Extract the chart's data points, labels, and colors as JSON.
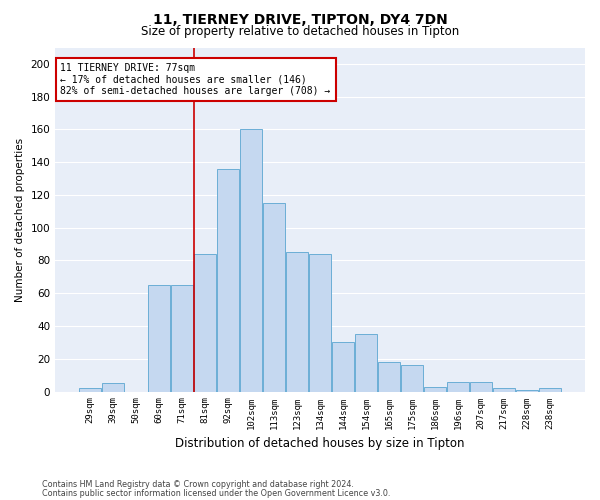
{
  "title1": "11, TIERNEY DRIVE, TIPTON, DY4 7DN",
  "title2": "Size of property relative to detached houses in Tipton",
  "xlabel": "Distribution of detached houses by size in Tipton",
  "ylabel": "Number of detached properties",
  "categories": [
    "29sqm",
    "39sqm",
    "50sqm",
    "60sqm",
    "71sqm",
    "81sqm",
    "92sqm",
    "102sqm",
    "113sqm",
    "123sqm",
    "134sqm",
    "144sqm",
    "154sqm",
    "165sqm",
    "175sqm",
    "186sqm",
    "196sqm",
    "207sqm",
    "217sqm",
    "228sqm",
    "238sqm"
  ],
  "values": [
    2,
    5,
    0,
    65,
    65,
    84,
    136,
    160,
    115,
    85,
    84,
    30,
    35,
    18,
    16,
    3,
    6,
    6,
    2,
    1,
    2
  ],
  "bar_color": "#c5d8f0",
  "bar_edge_color": "#6baed6",
  "background_color": "#e8eef8",
  "grid_color": "#ffffff",
  "red_line_x": 4.5,
  "annotation_line1": "11 TIERNEY DRIVE: 77sqm",
  "annotation_line2": "← 17% of detached houses are smaller (146)",
  "annotation_line3": "82% of semi-detached houses are larger (708) →",
  "annotation_box_edgecolor": "#cc0000",
  "ylim": [
    0,
    210
  ],
  "yticks": [
    0,
    20,
    40,
    60,
    80,
    100,
    120,
    140,
    160,
    180,
    200
  ],
  "footnote1": "Contains HM Land Registry data © Crown copyright and database right 2024.",
  "footnote2": "Contains public sector information licensed under the Open Government Licence v3.0."
}
